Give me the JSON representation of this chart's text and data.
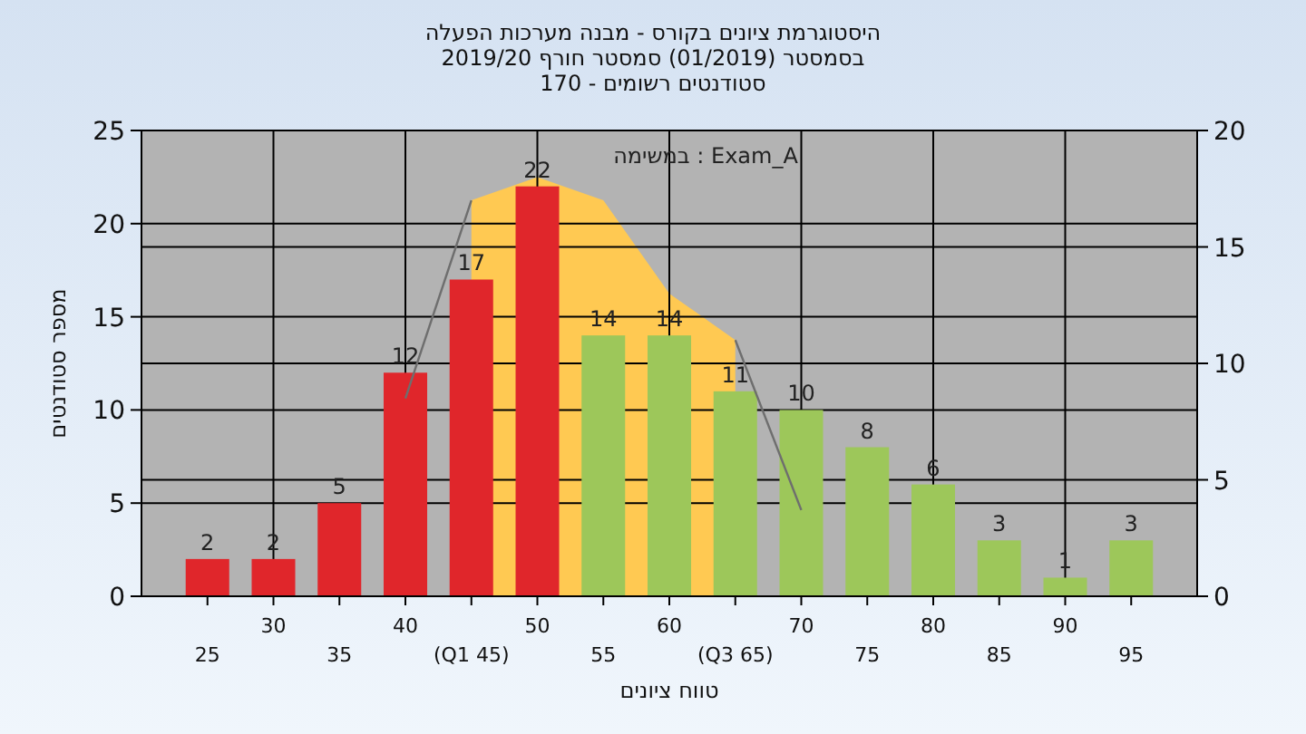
{
  "chart_data": {
    "type": "bar",
    "title": "היסטוגרמת ציונים בקורס - מבנה מערכות הפעלה",
    "subtitle": "בסמסטר  (01/2019)  סמסטר חורף 2019/20\nסטודנטים רשומים - 170",
    "xlabel": "טווח ציונים",
    "ylabel": "מספר סטודנטים",
    "annotations": [
      "במשימה : Exam_A"
    ],
    "x": [
      25,
      30,
      35,
      40,
      45,
      50,
      55,
      60,
      65,
      70,
      75,
      80,
      85,
      90,
      95
    ],
    "series": [
      {
        "type": "area",
        "axis": "y2",
        "color": "#ffc952",
        "x": [
          45,
          50,
          55,
          60,
          65
        ],
        "values": [
          17,
          18,
          17,
          13,
          11
        ]
      },
      {
        "type": "line",
        "axis": "y2",
        "color": "#6e6e6e",
        "x": [
          40,
          45
        ],
        "values": [
          8.5,
          17
        ]
      },
      {
        "type": "line",
        "axis": "y2",
        "color": "#6e6e6e",
        "x": [
          65,
          70
        ],
        "values": [
          11,
          3.7
        ]
      },
      {
        "values": [
          2,
          2,
          5,
          12,
          17,
          22,
          14,
          14,
          11,
          10,
          8,
          6,
          3,
          1,
          3
        ],
        "value_labels": [
          "2",
          "2",
          "5",
          "12",
          "17",
          "22",
          "14",
          "14",
          "11",
          "10",
          "8",
          "6",
          "3",
          "1",
          "3"
        ],
        "colors": [
          "#e0262b",
          "#e0262b",
          "#e0262b",
          "#e0262b",
          "#e0262b",
          "#e0262b",
          "#9dc75a",
          "#9dc75a",
          "#9dc75a",
          "#9dc75a",
          "#9dc75a",
          "#9dc75a",
          "#9dc75a",
          "#9dc75a",
          "#9dc75a"
        ]
      }
    ],
    "xlim": [
      20,
      100
    ],
    "xticks": [
      25,
      35,
      {
        "value": 45,
        "label": "(Q1 45)"
      },
      55,
      {
        "value": 65,
        "label": "(Q3 65)"
      },
      75,
      85,
      95
    ],
    "x2lim": [
      20,
      100
    ],
    "x2ticks": [
      30,
      40,
      50,
      60,
      70,
      80,
      90
    ],
    "ylim": [
      0,
      25
    ],
    "yticks": [
      0,
      5,
      10,
      15,
      20,
      25
    ],
    "y2lim": [
      0,
      20
    ],
    "y2ticks": [
      0,
      5,
      10,
      15,
      20
    ],
    "grid": true
  }
}
